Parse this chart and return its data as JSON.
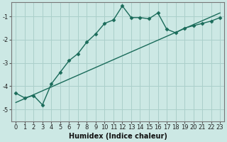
{
  "xlabel": "Humidex (Indice chaleur)",
  "bg_color": "#cce8e4",
  "grid_color": "#aacfca",
  "line_color": "#1a6b5a",
  "line1_x": [
    0,
    1,
    2,
    3,
    4,
    5,
    6,
    7,
    8,
    9,
    10,
    11,
    12,
    13,
    14,
    15,
    16,
    17,
    18,
    19,
    20,
    21,
    22,
    23
  ],
  "line1_y": [
    -4.3,
    -4.5,
    -4.4,
    -4.8,
    -3.9,
    -3.4,
    -2.9,
    -2.6,
    -2.1,
    -1.75,
    -1.3,
    -1.15,
    -0.55,
    -1.05,
    -1.05,
    -1.1,
    -0.85,
    -1.55,
    -1.7,
    -1.5,
    -1.4,
    -1.3,
    -1.2,
    -1.05
  ],
  "line2_x": [
    0,
    23
  ],
  "line2_y": [
    -4.7,
    -0.85
  ],
  "ylim": [
    -5.5,
    -0.4
  ],
  "xlim": [
    -0.5,
    23.5
  ],
  "yticks": [
    -5,
    -4,
    -3,
    -2,
    -1
  ],
  "xticks": [
    0,
    1,
    2,
    3,
    4,
    5,
    6,
    7,
    8,
    9,
    10,
    11,
    12,
    13,
    14,
    15,
    16,
    17,
    18,
    19,
    20,
    21,
    22,
    23
  ],
  "fontsize_label": 7,
  "fontsize_tick": 6
}
